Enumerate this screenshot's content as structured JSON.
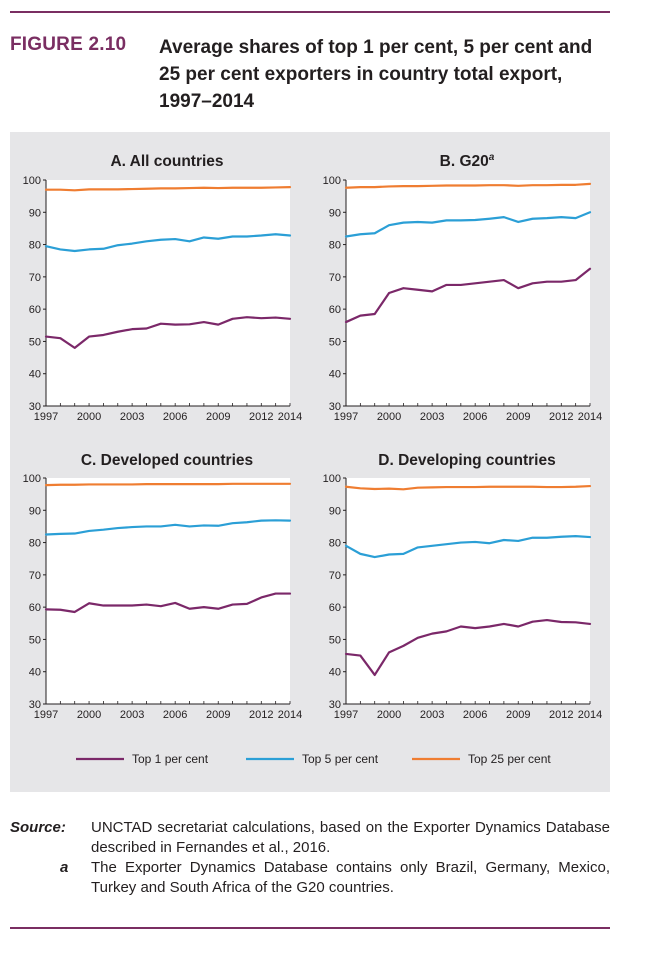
{
  "figure": {
    "label": "FIGURE 2.10",
    "title": "Average shares of top 1 per cent, 5 per cent and 25 per cent exporters in country total export, 1997–2014"
  },
  "notes": {
    "source_key": "Source:",
    "source_text": "UNCTAD secretariat calculations, based on the Exporter Dynamics Database described in Fernandes et al., 2016.",
    "footnote_key": "a",
    "footnote_text": "The Exporter Dynamics Database contains only Brazil, Germany, Mexico, Turkey and South Africa of the G20 countries."
  },
  "colors": {
    "top1": "#7b2869",
    "top5": "#2b9fd6",
    "top25": "#ef7d31",
    "panel_bg": "#e6e6e8",
    "plot_bg": "#ffffff"
  },
  "chart_data": [
    {
      "type": "line",
      "title": "A. All countries",
      "title_superscript": "",
      "x": [
        1997,
        1998,
        1999,
        2000,
        2001,
        2002,
        2003,
        2004,
        2005,
        2006,
        2007,
        2008,
        2009,
        2010,
        2011,
        2012,
        2013,
        2014
      ],
      "xticks": [
        "1997",
        "2000",
        "2003",
        "2006",
        "2009",
        "2012",
        "2014"
      ],
      "xtick_values": [
        1997,
        2000,
        2003,
        2006,
        2009,
        2012,
        2014
      ],
      "ylim": [
        30,
        100
      ],
      "yticks": [
        "30",
        "40",
        "50",
        "60",
        "70",
        "80",
        "90",
        "100"
      ],
      "series": [
        {
          "name": "Top 1 per cent",
          "values": [
            51.5,
            51,
            48,
            51.5,
            52,
            53,
            53.8,
            54,
            55.5,
            55.2,
            55.3,
            56,
            55.2,
            57,
            57.5,
            57.2,
            57.4,
            57
          ]
        },
        {
          "name": "Top 5 per cent",
          "values": [
            79.5,
            78.5,
            78,
            78.5,
            78.7,
            79.8,
            80.3,
            81,
            81.5,
            81.7,
            81,
            82.2,
            81.8,
            82.5,
            82.5,
            82.8,
            83.2,
            82.8
          ]
        },
        {
          "name": "Top 25 per cent",
          "values": [
            97,
            97,
            96.8,
            97.1,
            97.1,
            97.1,
            97.2,
            97.3,
            97.4,
            97.4,
            97.5,
            97.6,
            97.5,
            97.6,
            97.6,
            97.6,
            97.7,
            97.8
          ]
        }
      ]
    },
    {
      "type": "line",
      "title": "B. G20",
      "title_superscript": "a",
      "x": [
        1997,
        1998,
        1999,
        2000,
        2001,
        2002,
        2003,
        2004,
        2005,
        2006,
        2007,
        2008,
        2009,
        2010,
        2011,
        2012,
        2013,
        2014
      ],
      "xticks": [
        "1997",
        "2000",
        "2003",
        "2006",
        "2009",
        "2012",
        "2014"
      ],
      "xtick_values": [
        1997,
        2000,
        2003,
        2006,
        2009,
        2012,
        2014
      ],
      "ylim": [
        30,
        100
      ],
      "yticks": [
        "30",
        "40",
        "50",
        "60",
        "70",
        "80",
        "90",
        "100"
      ],
      "series": [
        {
          "name": "Top 1 per cent",
          "values": [
            56,
            58,
            58.5,
            65,
            66.5,
            66,
            65.5,
            67.5,
            67.5,
            68,
            68.5,
            69,
            66.5,
            68,
            68.5,
            68.5,
            69,
            72.5
          ]
        },
        {
          "name": "Top 5 per cent",
          "values": [
            82.5,
            83.2,
            83.5,
            86,
            86.8,
            87,
            86.8,
            87.5,
            87.5,
            87.6,
            88,
            88.5,
            87,
            88,
            88.2,
            88.5,
            88.2,
            90
          ]
        },
        {
          "name": "Top 25 per cent",
          "values": [
            97.6,
            97.8,
            97.8,
            98,
            98.1,
            98.1,
            98.2,
            98.3,
            98.3,
            98.3,
            98.4,
            98.4,
            98.2,
            98.4,
            98.4,
            98.5,
            98.5,
            98.8
          ]
        }
      ]
    },
    {
      "type": "line",
      "title": "C. Developed countries",
      "title_superscript": "",
      "x": [
        1997,
        1998,
        1999,
        2000,
        2001,
        2002,
        2003,
        2004,
        2005,
        2006,
        2007,
        2008,
        2009,
        2010,
        2011,
        2012,
        2013,
        2014
      ],
      "xticks": [
        "1997",
        "2000",
        "2003",
        "2006",
        "2009",
        "2012",
        "2014"
      ],
      "xtick_values": [
        1997,
        2000,
        2003,
        2006,
        2009,
        2012,
        2014
      ],
      "ylim": [
        30,
        100
      ],
      "yticks": [
        "30",
        "40",
        "50",
        "60",
        "70",
        "80",
        "90",
        "100"
      ],
      "series": [
        {
          "name": "Top 1 per cent",
          "values": [
            59.3,
            59.2,
            58.5,
            61.2,
            60.5,
            60.5,
            60.5,
            60.8,
            60.3,
            61.3,
            59.5,
            60,
            59.5,
            60.8,
            61,
            63,
            64.2,
            64.2
          ]
        },
        {
          "name": "Top 5 per cent",
          "values": [
            82.5,
            82.7,
            82.8,
            83.6,
            84,
            84.5,
            84.8,
            85,
            85,
            85.5,
            85,
            85.3,
            85.2,
            86,
            86.3,
            86.8,
            86.9,
            86.8
          ]
        },
        {
          "name": "Top 25 per cent",
          "values": [
            97.8,
            97.9,
            97.9,
            98,
            98,
            98,
            98,
            98.1,
            98.1,
            98.1,
            98.1,
            98.1,
            98.1,
            98.2,
            98.2,
            98.2,
            98.2,
            98.2
          ]
        }
      ]
    },
    {
      "type": "line",
      "title": "D. Developing countries",
      "title_superscript": "",
      "x": [
        1997,
        1998,
        1999,
        2000,
        2001,
        2002,
        2003,
        2004,
        2005,
        2006,
        2007,
        2008,
        2009,
        2010,
        2011,
        2012,
        2013,
        2014
      ],
      "xticks": [
        "1997",
        "2000",
        "2003",
        "2006",
        "2009",
        "2012",
        "2014"
      ],
      "xtick_values": [
        1997,
        2000,
        2003,
        2006,
        2009,
        2012,
        2014
      ],
      "ylim": [
        30,
        100
      ],
      "yticks": [
        "30",
        "40",
        "50",
        "60",
        "70",
        "80",
        "90",
        "100"
      ],
      "series": [
        {
          "name": "Top 1 per cent",
          "values": [
            45.5,
            45,
            39,
            46,
            48,
            50.5,
            51.8,
            52.5,
            54,
            53.5,
            54,
            54.8,
            54,
            55.5,
            56,
            55.4,
            55.3,
            54.8
          ]
        },
        {
          "name": "Top 5 per cent",
          "values": [
            79,
            76.5,
            75.5,
            76.3,
            76.5,
            78.5,
            79,
            79.5,
            80,
            80.2,
            79.8,
            80.8,
            80.5,
            81.5,
            81.5,
            81.8,
            82,
            81.7
          ]
        },
        {
          "name": "Top 25 per cent",
          "values": [
            97.3,
            96.8,
            96.6,
            96.7,
            96.5,
            97,
            97.1,
            97.2,
            97.2,
            97.2,
            97.3,
            97.3,
            97.3,
            97.3,
            97.2,
            97.2,
            97.3,
            97.5
          ]
        }
      ]
    }
  ],
  "legend": {
    "items": [
      "Top 1 per cent",
      "Top 5 per cent",
      "Top 25 per cent"
    ]
  }
}
